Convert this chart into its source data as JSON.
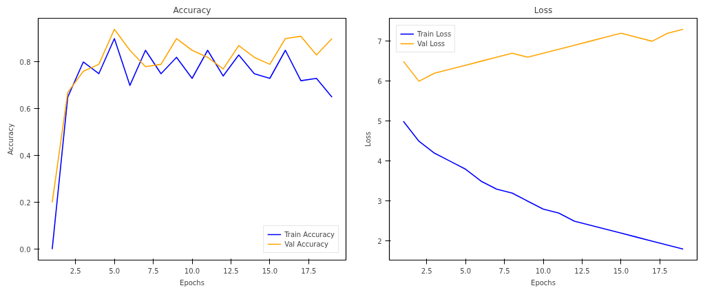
{
  "chart_data": [
    {
      "type": "line",
      "title": "Accuracy",
      "xlabel": "Epochs",
      "ylabel": "Accuracy",
      "x": [
        1,
        2,
        3,
        4,
        5,
        6,
        7,
        8,
        9,
        10,
        11,
        12,
        13,
        14,
        15,
        16,
        17,
        18,
        19
      ],
      "xlim": [
        0.1,
        19.9
      ],
      "xticks": [
        {
          "value": 2.5,
          "label": "2.5"
        },
        {
          "value": 5,
          "label": "5.0"
        },
        {
          "value": 7.5,
          "label": "7.5"
        },
        {
          "value": 10,
          "label": "10.0"
        },
        {
          "value": 12.5,
          "label": "12.5"
        },
        {
          "value": 15,
          "label": "15.0"
        },
        {
          "value": 17.5,
          "label": "17.5"
        }
      ],
      "ylim": [
        -0.047,
        0.987
      ],
      "yticks": [
        {
          "value": 0,
          "label": "0.0"
        },
        {
          "value": 0.2,
          "label": "0.2"
        },
        {
          "value": 0.4,
          "label": "0.4"
        },
        {
          "value": 0.6,
          "label": "0.6"
        },
        {
          "value": 0.8,
          "label": "0.8"
        }
      ],
      "grid": false,
      "legend": "bottom right",
      "series": [
        {
          "name": "Train Accuracy",
          "color": "#0000ff",
          "values": [
            0,
            0.65,
            0.8,
            0.75,
            0.9,
            0.7,
            0.85,
            0.75,
            0.82,
            0.73,
            0.85,
            0.74,
            0.83,
            0.75,
            0.73,
            0.85,
            0.72,
            0.73,
            0.65
          ]
        },
        {
          "name": "Val Accuracy",
          "color": "#ffa500",
          "values": [
            0.2,
            0.67,
            0.76,
            0.79,
            0.94,
            0.85,
            0.78,
            0.79,
            0.9,
            0.85,
            0.82,
            0.77,
            0.87,
            0.82,
            0.79,
            0.9,
            0.91,
            0.83,
            0.9
          ]
        }
      ]
    },
    {
      "type": "line",
      "title": "Loss",
      "xlabel": "Epochs",
      "ylabel": "Loss",
      "x": [
        1,
        2,
        3,
        4,
        5,
        6,
        7,
        8,
        9,
        10,
        11,
        12,
        13,
        14,
        15,
        16,
        17,
        18,
        19
      ],
      "xlim": [
        0.1,
        19.9
      ],
      "xticks": [
        {
          "value": 2.5,
          "label": "2.5"
        },
        {
          "value": 5,
          "label": "5.0"
        },
        {
          "value": 7.5,
          "label": "7.5"
        },
        {
          "value": 10,
          "label": "10.0"
        },
        {
          "value": 12.5,
          "label": "12.5"
        },
        {
          "value": 15,
          "label": "15.0"
        },
        {
          "value": 17.5,
          "label": "17.5"
        }
      ],
      "ylim": [
        1.525,
        7.575
      ],
      "yticks": [
        2,
        3,
        4,
        5,
        6,
        7
      ],
      "grid": false,
      "legend": "top left",
      "series": [
        {
          "name": "Train Loss",
          "color": "#0000ff",
          "values": [
            5.0,
            4.5,
            4.2,
            4.0,
            3.8,
            3.5,
            3.3,
            3.2,
            3.0,
            2.8,
            2.7,
            2.5,
            2.4,
            2.3,
            2.2,
            2.1,
            2.0,
            1.9,
            1.8
          ]
        },
        {
          "name": "Val Loss",
          "color": "#ffa500",
          "values": [
            6.5,
            6.0,
            6.2,
            6.3,
            6.4,
            6.5,
            6.6,
            6.7,
            6.6,
            6.7,
            6.8,
            6.9,
            7.0,
            7.1,
            7.2,
            7.1,
            7.0,
            7.2,
            7.3
          ]
        }
      ]
    }
  ]
}
